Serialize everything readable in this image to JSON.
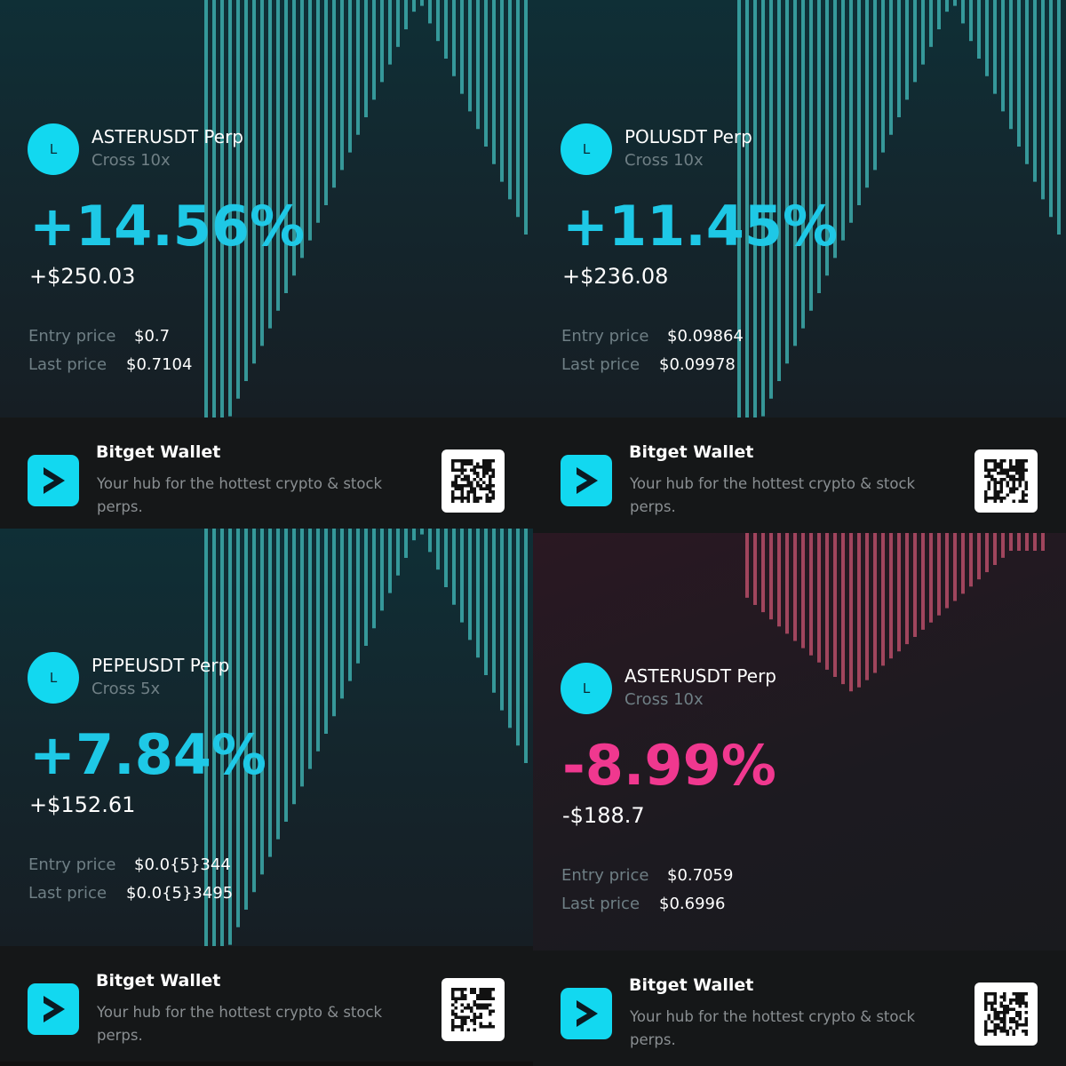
{
  "cards": [
    {
      "avatar": "L",
      "symbol": "ASTERUSDT Perp",
      "mode": "Cross 10x",
      "pnl_percent": "+14.56%",
      "pnl_amount": "+$250.03",
      "entry_label": "Entry price",
      "entry_price": "$0.7",
      "last_label": "Last price",
      "last_price": "$0.7104",
      "color": "#1ec8e6",
      "footer": {
        "title": "Bitget Wallet",
        "tagline": "Your hub for the hottest crypto & stock perps."
      }
    },
    {
      "avatar": "L",
      "symbol": "POLUSDT Perp",
      "mode": "Cross 10x",
      "pnl_percent": "+11.45%",
      "pnl_amount": "+$236.08",
      "entry_label": "Entry price",
      "entry_price": "$0.09864",
      "last_label": "Last price",
      "last_price": "$0.09978",
      "color": "#1ec8e6",
      "footer": {
        "title": "Bitget Wallet",
        "tagline": "Your hub for the hottest crypto & stock perps."
      }
    },
    {
      "avatar": "L",
      "symbol": "PEPEUSDT Perp",
      "mode": "Cross 5x",
      "pnl_percent": "+7.84%",
      "pnl_amount": "+$152.61",
      "entry_label": "Entry price",
      "entry_price": "$0.0{5}344",
      "last_label": "Last price",
      "last_price": "$0.0{5}3495",
      "color": "#1ec8e6",
      "footer": {
        "title": "Bitget Wallet",
        "tagline": "Your hub for the hottest crypto & stock perps."
      }
    },
    {
      "avatar": "L",
      "symbol": "ASTERUSDT Perp",
      "mode": "Cross 10x",
      "pnl_percent": "-8.99%",
      "pnl_amount": "-$188.7",
      "entry_label": "Entry price",
      "entry_price": "$0.7059",
      "last_label": "Last price",
      "last_price": "$0.6996",
      "color": "#f0388f",
      "footer": {
        "title": "Bitget Wallet",
        "tagline": "Your hub for the hottest crypto & stock perps."
      }
    }
  ]
}
